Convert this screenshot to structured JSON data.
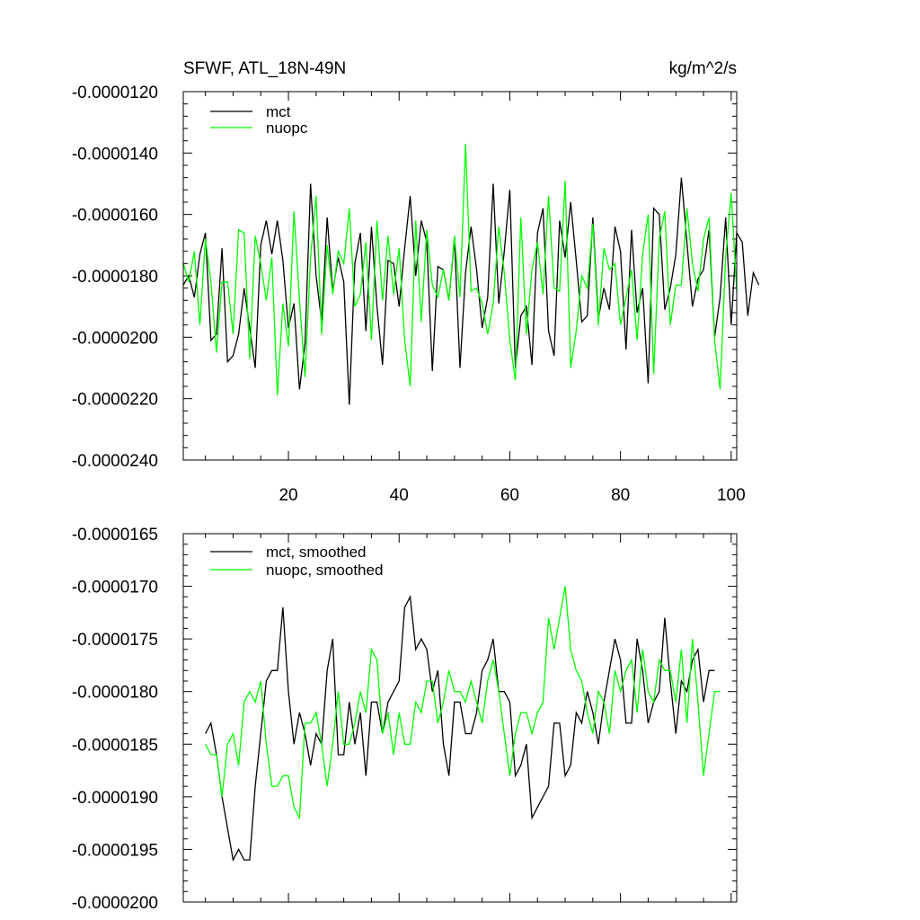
{
  "chart_data": [
    {
      "type": "line",
      "title_left": "SFWF, ATL_18N-49N",
      "title_right": "kg/m^2/s",
      "xlim": [
        1,
        101
      ],
      "ylim": [
        -2.4e-05,
        -1.2e-05
      ],
      "x_ticks": [
        20,
        40,
        60,
        80,
        100
      ],
      "x_tick_labels": [
        "20",
        "40",
        "60",
        "80",
        "100"
      ],
      "y_ticks": [
        -1.2e-05,
        -1.4e-05,
        -1.6e-05,
        -1.8e-05,
        -2e-05,
        -2.2e-05,
        -2.4e-05
      ],
      "y_tick_labels": [
        "-0.0000120",
        "-0.0000140",
        "-0.0000160",
        "-0.0000180",
        "-0.0000200",
        "-0.0000220",
        "-0.0000240"
      ],
      "legend_position": "top-left",
      "x_start": 1,
      "x_step": 1,
      "series": [
        {
          "name": "mct",
          "color": "#000000",
          "values": [
            -1.83e-05,
            -1.8e-05,
            -1.87e-05,
            -1.73e-05,
            -1.66e-05,
            -2.01e-05,
            -1.99e-05,
            -1.71e-05,
            -2.08e-05,
            -2.06e-05,
            -1.99e-05,
            -1.84e-05,
            -1.97e-05,
            -2.1e-05,
            -1.7e-05,
            -1.62e-05,
            -1.73e-05,
            -1.62e-05,
            -1.75e-05,
            -1.97e-05,
            -1.89e-05,
            -2.17e-05,
            -2.02e-05,
            -1.5e-05,
            -1.8e-05,
            -1.95e-05,
            -1.61e-05,
            -1.85e-05,
            -1.74e-05,
            -1.82e-05,
            -2.22e-05,
            -1.76e-05,
            -1.66e-05,
            -1.98e-05,
            -1.64e-05,
            -1.9e-05,
            -2.09e-05,
            -1.75e-05,
            -1.76e-05,
            -1.9e-05,
            -1.71e-05,
            -1.54e-05,
            -1.8e-05,
            -1.62e-05,
            -1.69e-05,
            -2.11e-05,
            -1.77e-05,
            -1.78e-05,
            -1.88e-05,
            -1.68e-05,
            -2.1e-05,
            -1.79e-05,
            -1.64e-05,
            -1.78e-05,
            -1.97e-05,
            -1.87e-05,
            -1.5e-05,
            -1.89e-05,
            -1.72e-05,
            -1.52e-05,
            -2.1e-05,
            -1.93e-05,
            -1.9e-05,
            -2.09e-05,
            -1.66e-05,
            -1.58e-05,
            -1.98e-05,
            -2.06e-05,
            -1.62e-05,
            -1.74e-05,
            -1.56e-05,
            -1.75e-05,
            -1.95e-05,
            -1.93e-05,
            -1.61e-05,
            -1.94e-05,
            -1.84e-05,
            -1.91e-05,
            -1.64e-05,
            -1.72e-05,
            -2.04e-05,
            -1.65e-05,
            -1.92e-05,
            -1.84e-05,
            -2.15e-05,
            -1.58e-05,
            -1.6e-05,
            -1.91e-05,
            -1.84e-05,
            -1.73e-05,
            -1.48e-05,
            -1.69e-05,
            -1.9e-05,
            -1.81e-05,
            -1.78e-05,
            -1.65e-05,
            -2e-05,
            -1.87e-05,
            -1.61e-05,
            -1.96e-05,
            -1.66e-05,
            -1.69e-05,
            -1.93e-05,
            -1.79e-05,
            -1.83e-05
          ]
        },
        {
          "name": "nuopc",
          "color": "#00ff00",
          "values": [
            -1.76e-05,
            -1.82e-05,
            -1.72e-05,
            -1.96e-05,
            -1.68e-05,
            -1.82e-05,
            -2.05e-05,
            -1.82e-05,
            -1.82e-05,
            -1.99e-05,
            -1.65e-05,
            -1.66e-05,
            -2.07e-05,
            -1.67e-05,
            -1.76e-05,
            -1.88e-05,
            -1.74e-05,
            -2.19e-05,
            -1.89e-05,
            -2.03e-05,
            -1.59e-05,
            -1.88e-05,
            -2.13e-05,
            -1.74e-05,
            -1.54e-05,
            -1.99e-05,
            -1.7e-05,
            -1.86e-05,
            -1.72e-05,
            -1.76e-05,
            -1.58e-05,
            -1.9e-05,
            -1.86e-05,
            -1.69e-05,
            -2.01e-05,
            -1.62e-05,
            -1.88e-05,
            -1.67e-05,
            -1.86e-05,
            -1.71e-05,
            -2.01e-05,
            -2.16e-05,
            -1.62e-05,
            -1.95e-05,
            -1.65e-05,
            -1.83e-05,
            -1.87e-05,
            -1.78e-05,
            -1.88e-05,
            -1.67e-05,
            -1.87e-05,
            -1.37e-05,
            -1.85e-05,
            -1.84e-05,
            -1.89e-05,
            -1.99e-05,
            -1.89e-05,
            -1.64e-05,
            -1.79e-05,
            -2.01e-05,
            -2.14e-05,
            -1.61e-05,
            -1.99e-05,
            -1.78e-05,
            -1.69e-05,
            -1.86e-05,
            -1.54e-05,
            -1.84e-05,
            -1.85e-05,
            -1.49e-05,
            -2.1e-05,
            -1.98e-05,
            -1.8e-05,
            -1.84e-05,
            -1.63e-05,
            -1.96e-05,
            -1.71e-05,
            -1.78e-05,
            -1.76e-05,
            -1.96e-05,
            -1.87e-05,
            -1.78e-05,
            -2.01e-05,
            -1.73e-05,
            -1.6e-05,
            -2.12e-05,
            -1.68e-05,
            -1.59e-05,
            -1.96e-05,
            -1.83e-05,
            -1.83e-05,
            -1.58e-05,
            -1.76e-05,
            -1.85e-05,
            -1.68e-05,
            -1.61e-05,
            -2.01e-05,
            -2.17e-05,
            -1.74e-05,
            -1.53e-05,
            -1.85e-05
          ]
        }
      ]
    },
    {
      "type": "line",
      "xlim": [
        1,
        101
      ],
      "ylim": [
        -2e-05,
        -1.65e-05
      ],
      "x_ticks": [
        20,
        40,
        60,
        80,
        100
      ],
      "x_tick_labels": [],
      "y_ticks": [
        -1.65e-05,
        -1.7e-05,
        -1.75e-05,
        -1.8e-05,
        -1.85e-05,
        -1.9e-05,
        -1.95e-05,
        -2e-05
      ],
      "y_tick_labels": [
        "-0.0000165",
        "-0.0000170",
        "-0.0000175",
        "-0.0000180",
        "-0.0000185",
        "-0.0000190",
        "-0.0000195",
        "-0.0000200"
      ],
      "legend_position": "top-left",
      "x_start": 5,
      "x_step": 1,
      "series": [
        {
          "name": "mct, smoothed",
          "color": "#000000",
          "values": [
            -1.84e-05,
            -1.83e-05,
            -1.86e-05,
            -1.9e-05,
            -1.93e-05,
            -1.96e-05,
            -1.95e-05,
            -1.96e-05,
            -1.96e-05,
            -1.89e-05,
            -1.84e-05,
            -1.79e-05,
            -1.78e-05,
            -1.78e-05,
            -1.72e-05,
            -1.8e-05,
            -1.85e-05,
            -1.82e-05,
            -1.84e-05,
            -1.87e-05,
            -1.84e-05,
            -1.85e-05,
            -1.78e-05,
            -1.75e-05,
            -1.86e-05,
            -1.86e-05,
            -1.81e-05,
            -1.85e-05,
            -1.82e-05,
            -1.88e-05,
            -1.81e-05,
            -1.81e-05,
            -1.84e-05,
            -1.81e-05,
            -1.8e-05,
            -1.79e-05,
            -1.72e-05,
            -1.71e-05,
            -1.76e-05,
            -1.75e-05,
            -1.76e-05,
            -1.8e-05,
            -1.78e-05,
            -1.85e-05,
            -1.88e-05,
            -1.81e-05,
            -1.81e-05,
            -1.84e-05,
            -1.84e-05,
            -1.82e-05,
            -1.78e-05,
            -1.77e-05,
            -1.75e-05,
            -1.8e-05,
            -1.8e-05,
            -1.81e-05,
            -1.88e-05,
            -1.87e-05,
            -1.85e-05,
            -1.92e-05,
            -1.91e-05,
            -1.9e-05,
            -1.89e-05,
            -1.83e-05,
            -1.83e-05,
            -1.88e-05,
            -1.87e-05,
            -1.82e-05,
            -1.83e-05,
            -1.8e-05,
            -1.82e-05,
            -1.85e-05,
            -1.81e-05,
            -1.78e-05,
            -1.75e-05,
            -1.77e-05,
            -1.83e-05,
            -1.83e-05,
            -1.75e-05,
            -1.78e-05,
            -1.83e-05,
            -1.81e-05,
            -1.8e-05,
            -1.73e-05,
            -1.79e-05,
            -1.84e-05,
            -1.79e-05,
            -1.8e-05,
            -1.77e-05,
            -1.76e-05,
            -1.81e-05,
            -1.78e-05,
            -1.78e-05
          ]
        },
        {
          "name": "nuopc, smoothed",
          "color": "#00ff00",
          "values": [
            -1.85e-05,
            -1.86e-05,
            -1.86e-05,
            -1.9e-05,
            -1.85e-05,
            -1.84e-05,
            -1.87e-05,
            -1.81e-05,
            -1.8e-05,
            -1.81e-05,
            -1.79e-05,
            -1.85e-05,
            -1.89e-05,
            -1.89e-05,
            -1.88e-05,
            -1.88e-05,
            -1.91e-05,
            -1.92e-05,
            -1.83e-05,
            -1.83e-05,
            -1.82e-05,
            -1.85e-05,
            -1.89e-05,
            -1.85e-05,
            -1.8e-05,
            -1.85e-05,
            -1.85e-05,
            -1.83e-05,
            -1.8e-05,
            -1.82e-05,
            -1.76e-05,
            -1.77e-05,
            -1.84e-05,
            -1.82e-05,
            -1.86e-05,
            -1.82e-05,
            -1.85e-05,
            -1.85e-05,
            -1.81e-05,
            -1.82e-05,
            -1.79e-05,
            -1.79e-05,
            -1.83e-05,
            -1.81e-05,
            -1.78e-05,
            -1.8e-05,
            -1.8e-05,
            -1.81e-05,
            -1.79e-05,
            -1.81e-05,
            -1.83e-05,
            -1.79e-05,
            -1.77e-05,
            -1.8e-05,
            -1.84e-05,
            -1.88e-05,
            -1.84e-05,
            -1.82e-05,
            -1.82e-05,
            -1.84e-05,
            -1.82e-05,
            -1.81e-05,
            -1.73e-05,
            -1.76e-05,
            -1.73e-05,
            -1.7e-05,
            -1.76e-05,
            -1.78e-05,
            -1.79e-05,
            -1.82e-05,
            -1.84e-05,
            -1.8e-05,
            -1.81e-05,
            -1.84e-05,
            -1.78e-05,
            -1.8e-05,
            -1.78e-05,
            -1.77e-05,
            -1.82e-05,
            -1.76e-05,
            -1.8e-05,
            -1.81e-05,
            -1.77e-05,
            -1.78e-05,
            -1.78e-05,
            -1.81e-05,
            -1.76e-05,
            -1.83e-05,
            -1.75e-05,
            -1.81e-05,
            -1.88e-05,
            -1.84e-05,
            -1.8e-05,
            -1.8e-05
          ]
        }
      ]
    }
  ]
}
